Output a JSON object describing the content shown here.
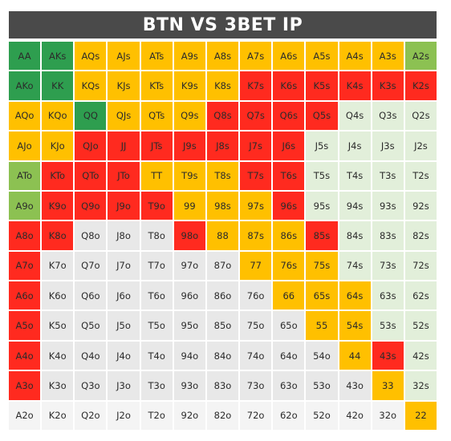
{
  "title": "BTN VS 3BET IP",
  "colors": {
    "G": "#2e9e4f",
    "L": "#8cc152",
    "O": "#ffc000",
    "R": "#ff2a1f",
    "P": "#e2efda",
    "W": "#e8e8e8",
    "F": "#f4f4f4"
  },
  "rows": [
    {
      "hands": [
        "AA",
        "AKs",
        "AQs",
        "AJs",
        "ATs",
        "A9s",
        "A8s",
        "A7s",
        "A6s",
        "A5s",
        "A4s",
        "A3s",
        "A2s"
      ],
      "colors": "GGOOOOOOOOOOL"
    },
    {
      "hands": [
        "AKo",
        "KK",
        "KQs",
        "KJs",
        "KTs",
        "K9s",
        "K8s",
        "K7s",
        "K6s",
        "K5s",
        "K4s",
        "K3s",
        "K2s"
      ],
      "colors": "GGOOOOORRRRRR"
    },
    {
      "hands": [
        "AQo",
        "KQo",
        "QQ",
        "QJs",
        "QTs",
        "Q9s",
        "Q8s",
        "Q7s",
        "Q6s",
        "Q5s",
        "Q4s",
        "Q3s",
        "Q2s"
      ],
      "colors": "OOGOOORRRRPPP"
    },
    {
      "hands": [
        "AJo",
        "KJo",
        "QJo",
        "JJ",
        "JTs",
        "J9s",
        "J8s",
        "J7s",
        "J6s",
        "J5s",
        "J4s",
        "J3s",
        "J2s"
      ],
      "colors": "OORRRRRRRPPPP"
    },
    {
      "hands": [
        "ATo",
        "KTo",
        "QTo",
        "JTo",
        "TT",
        "T9s",
        "T8s",
        "T7s",
        "T6s",
        "T5s",
        "T4s",
        "T3s",
        "T2s"
      ],
      "colors": "LRRROOORRPPPP"
    },
    {
      "hands": [
        "A9o",
        "K9o",
        "Q9o",
        "J9o",
        "T9o",
        "99",
        "98s",
        "97s",
        "96s",
        "95s",
        "94s",
        "93s",
        "92s"
      ],
      "colors": "LRRRROOORPPPP"
    },
    {
      "hands": [
        "A8o",
        "K8o",
        "Q8o",
        "J8o",
        "T8o",
        "98o",
        "88",
        "87s",
        "86s",
        "85s",
        "84s",
        "83s",
        "82s"
      ],
      "colors": "RRWWWROOORPPP"
    },
    {
      "hands": [
        "A7o",
        "K7o",
        "Q7o",
        "J7o",
        "T7o",
        "97o",
        "87o",
        "77",
        "76s",
        "75s",
        "74s",
        "73s",
        "72s"
      ],
      "colors": "RWWWWWWOOOPPP"
    },
    {
      "hands": [
        "A6o",
        "K6o",
        "Q6o",
        "J6o",
        "T6o",
        "96o",
        "86o",
        "76o",
        "66",
        "65s",
        "64s",
        "63s",
        "62s"
      ],
      "colors": "RWWWWWWWOOOPP"
    },
    {
      "hands": [
        "A5o",
        "K5o",
        "Q5o",
        "J5o",
        "T5o",
        "95o",
        "85o",
        "75o",
        "65o",
        "55",
        "54s",
        "53s",
        "52s"
      ],
      "colors": "RWWWWWWWWOOPP"
    },
    {
      "hands": [
        "A4o",
        "K4o",
        "Q4o",
        "J4o",
        "T4o",
        "94o",
        "84o",
        "74o",
        "64o",
        "54o",
        "44",
        "43s",
        "42s"
      ],
      "colors": "RWWWWWWWWWORP"
    },
    {
      "hands": [
        "A3o",
        "K3o",
        "Q3o",
        "J3o",
        "T3o",
        "93o",
        "83o",
        "73o",
        "63o",
        "53o",
        "43o",
        "33",
        "32s"
      ],
      "colors": "RWWWWWWWWWWOP"
    },
    {
      "hands": [
        "A2o",
        "K2o",
        "Q2o",
        "J2o",
        "T2o",
        "92o",
        "82o",
        "72o",
        "62o",
        "52o",
        "42o",
        "32o",
        "22"
      ],
      "colors": "FFFFFFFFFFFFO"
    }
  ]
}
